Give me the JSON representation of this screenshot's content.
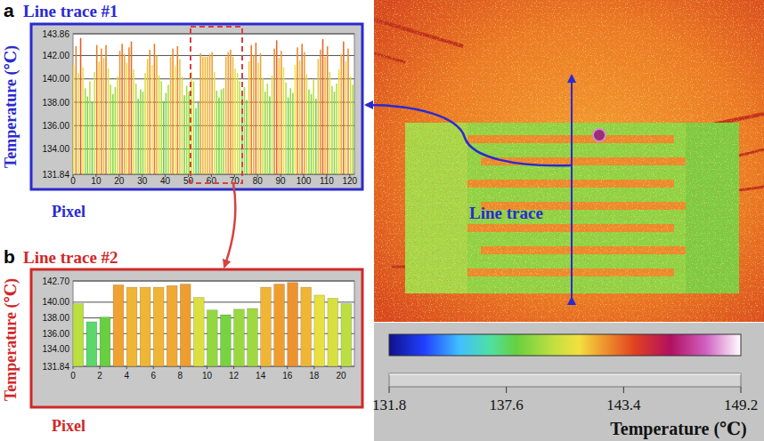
{
  "chart_data": [
    {
      "type": "bar",
      "label": "a",
      "title": "Line trace #1",
      "x_label": "Pixel",
      "y_label": "Temperature (℃)",
      "x": [
        0,
        1,
        2,
        3,
        4,
        5,
        6,
        7,
        8,
        9,
        10,
        11,
        12,
        13,
        14,
        15,
        16,
        17,
        18,
        19,
        20,
        21,
        22,
        23,
        24,
        25,
        26,
        27,
        28,
        29,
        30,
        31,
        32,
        33,
        34,
        35,
        36,
        37,
        38,
        39,
        40,
        41,
        42,
        43,
        44,
        45,
        46,
        47,
        48,
        49,
        50,
        51,
        52,
        53,
        54,
        55,
        56,
        57,
        58,
        59,
        60,
        61,
        62,
        63,
        64,
        65,
        66,
        67,
        68,
        69,
        70,
        71,
        72,
        73,
        74,
        75,
        76,
        77,
        78,
        79,
        80,
        81,
        82,
        83,
        84,
        85,
        86,
        87,
        88,
        89,
        90,
        91,
        92,
        93,
        94,
        95,
        96,
        97,
        98,
        99,
        100,
        101,
        102,
        103,
        104,
        105,
        106,
        107,
        108,
        109,
        110,
        111,
        112,
        113,
        114,
        115,
        116,
        117,
        118,
        119,
        120,
        121
      ],
      "values": [
        141.2,
        142.8,
        140.5,
        143.5,
        141.0,
        139.2,
        138.5,
        139.8,
        138.0,
        140.6,
        142.9,
        141.5,
        142.6,
        141.8,
        142.9,
        140.9,
        139.5,
        138.7,
        139.3,
        140.2,
        142.4,
        143.0,
        142.1,
        141.4,
        142.7,
        143.2,
        140.8,
        139.6,
        138.3,
        139.1,
        138.9,
        140.5,
        141.7,
        142.5,
        141.2,
        143.0,
        142.0,
        140.3,
        139.8,
        138.1,
        138.8,
        139.5,
        141.9,
        142.6,
        141.1,
        142.8,
        141.7,
        140.2,
        138.6,
        139.4,
        138.9,
        140.6,
        139.8,
        137.5,
        138.1,
        142.2,
        141.9,
        141.9,
        141.9,
        142.1,
        142.3,
        140.6,
        139.0,
        138.4,
        139.1,
        139.2,
        141.9,
        142.3,
        142.5,
        141.9,
        140.9,
        140.5,
        139.8,
        138.6,
        139.3,
        138.2,
        141.5,
        142.9,
        142.0,
        143.1,
        141.4,
        142.2,
        140.1,
        138.9,
        139.6,
        138.5,
        140.3,
        142.6,
        143.3,
        141.8,
        142.4,
        141.0,
        139.7,
        138.4,
        139.2,
        138.8,
        141.2,
        142.7,
        141.6,
        143.0,
        142.3,
        140.4,
        139.1,
        138.7,
        139.9,
        138.3,
        141.7,
        142.5,
        143.4,
        141.9,
        142.8,
        140.6,
        139.4,
        138.9,
        139.6,
        140.8,
        142.1,
        143.2,
        141.5,
        142.6,
        140.2,
        139.5
      ],
      "xlim": [
        0,
        122
      ],
      "xticks": [
        0,
        10,
        20,
        30,
        40,
        50,
        60,
        70,
        80,
        90,
        100,
        110,
        120
      ],
      "ylim": [
        131.84,
        143.86
      ],
      "yticks": [
        131.84,
        {
          "value": 134,
          "label": "134.00"
        },
        {
          "value": 136,
          "label": "136.00"
        },
        {
          "value": 138,
          "label": "138.00"
        },
        {
          "value": 140,
          "label": "140.00"
        },
        {
          "value": 142,
          "label": "142.00"
        },
        143.86
      ],
      "grid": true
    },
    {
      "type": "bar",
      "label": "b",
      "title": "Line trace #2",
      "x_label": "Pixel",
      "y_label": "Temperature (℃)",
      "x": [
        0,
        1,
        2,
        3,
        4,
        5,
        6,
        7,
        8,
        9,
        10,
        11,
        12,
        13,
        14,
        15,
        16,
        17,
        18,
        19,
        20
      ],
      "values": [
        139.8,
        137.5,
        138.1,
        142.2,
        141.9,
        141.9,
        141.9,
        142.1,
        142.3,
        140.6,
        139.0,
        138.4,
        139.1,
        139.2,
        141.9,
        142.3,
        142.5,
        141.9,
        140.9,
        140.5,
        139.8
      ],
      "xlim": [
        0,
        21
      ],
      "xticks": [
        0,
        2,
        4,
        6,
        8,
        10,
        12,
        14,
        16,
        18,
        20
      ],
      "ylim": [
        131.84,
        142.7
      ],
      "yticks": [
        131.84,
        {
          "value": 134,
          "label": "134.00"
        },
        {
          "value": 136,
          "label": "136.00"
        },
        {
          "value": 138,
          "label": "138.00"
        },
        {
          "value": 140,
          "label": "140.00"
        },
        {
          "value": 142.7,
          "label": "142.70"
        }
      ],
      "grid": true
    }
  ],
  "thermal_image": {
    "label": "Line trace",
    "colorbar": {
      "title": "Temperature (℃)",
      "range": [
        131.8,
        149.2
      ],
      "ticks": [
        131.8,
        137.6,
        143.4,
        149.2
      ]
    }
  }
}
